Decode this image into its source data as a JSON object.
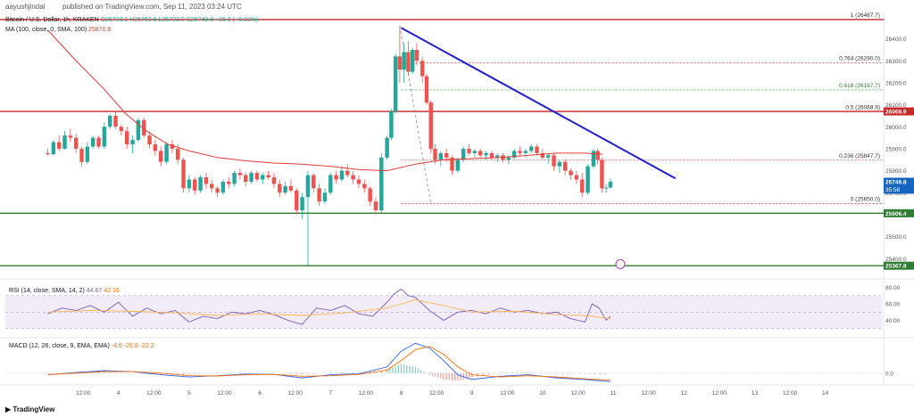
{
  "header": {
    "author": "aayushjindal",
    "published": "published on TradingView.com, Sep 11, 2023 03:24 UTC"
  },
  "legend": {
    "symbol": "Bitcoin / U.S. Dollar, 1h, KRAKEN",
    "ohlc": "O25723.1 H25763.6 L25723.0 C25749.8 +26.8 (+0.10%)",
    "ma_label": "MA (100, close, 0, SMA, 100)",
    "ma_value": "25870.8"
  },
  "colors": {
    "up": "#26a69a",
    "down": "#ef5350",
    "ma": "#e53935",
    "trend": "#1f1fd6",
    "fib": "#c62828",
    "support": "#2e7d32",
    "rsi": "#7e57c2",
    "macd": "#2962ff",
    "signal": "#ff6d00"
  },
  "chart_data": [
    {
      "type": "candlestick",
      "ylim": [
        25320,
        26520
      ],
      "y_ticks": [
        25400.0,
        25500.0,
        25600.0,
        25700.0,
        25800.0,
        25900.0,
        26000.0,
        26100.0,
        26200.0,
        26300.0,
        26400.0
      ],
      "x_ticks": [
        "12:00",
        "4",
        "12:00",
        "5",
        "12:00",
        "6",
        "12:00",
        "7",
        "12:00",
        "8",
        "12:00",
        "9",
        "12:00",
        "10",
        "12:00",
        "11",
        "12:00",
        "12",
        "12:00",
        "13",
        "12:00",
        "14"
      ],
      "price_tags": [
        {
          "label": "26069.9",
          "value": 26069.9,
          "kind": "resistance"
        },
        {
          "label": "25749.8",
          "sub": "35:58",
          "value": 25749.8,
          "kind": "last"
        },
        {
          "label": "25606.4",
          "value": 25606.4,
          "kind": "support"
        },
        {
          "label": "25367.8",
          "value": 25367.8,
          "kind": "support"
        }
      ],
      "horizontal_lines": [
        {
          "value": 26487.7,
          "kind": "resistance"
        },
        {
          "value": 26069.9,
          "kind": "resistance"
        },
        {
          "value": 25606.4,
          "kind": "support"
        },
        {
          "value": 25367.8,
          "kind": "support"
        }
      ],
      "fibonacci": [
        {
          "label": "1 (26487.7)",
          "value": 26487.7
        },
        {
          "label": "0.764 (26290.0)",
          "value": 26290.0
        },
        {
          "label": "0.618 (26167.7)",
          "value": 26167.7
        },
        {
          "label": "0.5 (26068.9)",
          "value": 26068.9
        },
        {
          "label": "0.236 (25847.7)",
          "value": 25847.7
        },
        {
          "label": "0 (25650.0)",
          "value": 25650.0
        }
      ],
      "trendline": {
        "from": [
          8.0,
          26450
        ],
        "to": [
          11.88,
          25765
        ]
      },
      "ma_series": {
        "x": [
          3.0,
          3.4,
          3.8,
          4.1,
          4.4,
          4.7,
          5.0,
          5.4,
          5.8,
          6.2,
          6.6,
          7.0,
          7.4,
          7.8,
          8.2,
          8.6,
          9.0,
          9.4,
          9.8,
          10.2,
          10.6,
          10.85
        ],
        "values": [
          26440,
          26300,
          26170,
          26060,
          25980,
          25920,
          25890,
          25860,
          25845,
          25835,
          25830,
          25820,
          25805,
          25800,
          25830,
          25850,
          25855,
          25860,
          25870,
          25880,
          25880,
          25875
        ]
      },
      "candles": [
        [
          3.0,
          25880,
          25900,
          25870,
          25875
        ],
        [
          3.08,
          25875,
          25940,
          25870,
          25930
        ],
        [
          3.16,
          25930,
          25960,
          25890,
          25900
        ],
        [
          3.24,
          25900,
          25980,
          25895,
          25960
        ],
        [
          3.32,
          25960,
          25990,
          25930,
          25950
        ],
        [
          3.4,
          25950,
          25970,
          25880,
          25900
        ],
        [
          3.48,
          25900,
          25910,
          25820,
          25840
        ],
        [
          3.56,
          25840,
          25930,
          25830,
          25910
        ],
        [
          3.64,
          25910,
          25960,
          25900,
          25950
        ],
        [
          3.72,
          25950,
          25960,
          25900,
          25910
        ],
        [
          3.8,
          25910,
          26020,
          25900,
          26000
        ],
        [
          3.88,
          26000,
          26060,
          25990,
          26050
        ],
        [
          3.96,
          26050,
          26070,
          25990,
          26000
        ],
        [
          4.04,
          26000,
          26010,
          25960,
          25980
        ],
        [
          4.12,
          25980,
          26000,
          25900,
          25920
        ],
        [
          4.2,
          25920,
          25960,
          25880,
          25940
        ],
        [
          4.28,
          25940,
          26040,
          25930,
          26030
        ],
        [
          4.36,
          26030,
          26040,
          25950,
          25960
        ],
        [
          4.44,
          25960,
          25980,
          25900,
          25920
        ],
        [
          4.52,
          25920,
          25940,
          25870,
          25890
        ],
        [
          4.6,
          25890,
          25910,
          25820,
          25840
        ],
        [
          4.68,
          25840,
          25930,
          25830,
          25920
        ],
        [
          4.76,
          25920,
          25940,
          25880,
          25900
        ],
        [
          4.84,
          25900,
          25920,
          25830,
          25850
        ],
        [
          4.92,
          25850,
          25860,
          25700,
          25720
        ],
        [
          5.0,
          25720,
          25780,
          25700,
          25760
        ],
        [
          5.08,
          25760,
          25770,
          25690,
          25710
        ],
        [
          5.16,
          25710,
          25780,
          25700,
          25770
        ],
        [
          5.24,
          25770,
          25790,
          25720,
          25740
        ],
        [
          5.32,
          25740,
          25760,
          25700,
          25720
        ],
        [
          5.4,
          25720,
          25730,
          25680,
          25700
        ],
        [
          5.48,
          25700,
          25760,
          25690,
          25750
        ],
        [
          5.56,
          25750,
          25770,
          25720,
          25740
        ],
        [
          5.64,
          25740,
          25800,
          25730,
          25790
        ],
        [
          5.72,
          25790,
          25810,
          25760,
          25780
        ],
        [
          5.8,
          25780,
          25790,
          25730,
          25750
        ],
        [
          5.88,
          25750,
          25800,
          25740,
          25790
        ],
        [
          5.96,
          25790,
          25800,
          25750,
          25760
        ],
        [
          6.04,
          25760,
          25790,
          25740,
          25780
        ],
        [
          6.12,
          25780,
          25800,
          25760,
          25770
        ],
        [
          6.2,
          25770,
          25790,
          25720,
          25740
        ],
        [
          6.28,
          25740,
          25760,
          25680,
          25700
        ],
        [
          6.36,
          25700,
          25750,
          25690,
          25730
        ],
        [
          6.44,
          25730,
          25760,
          25700,
          25710
        ],
        [
          6.52,
          25710,
          25720,
          25600,
          25620
        ],
        [
          6.6,
          25620,
          25700,
          25580,
          25680
        ],
        [
          6.68,
          25680,
          25800,
          25370,
          25780
        ],
        [
          6.76,
          25780,
          25790,
          25700,
          25720
        ],
        [
          6.84,
          25720,
          25740,
          25640,
          25660
        ],
        [
          6.92,
          25660,
          25720,
          25650,
          25700
        ],
        [
          7.0,
          25700,
          25790,
          25690,
          25780
        ],
        [
          7.08,
          25780,
          25800,
          25740,
          25760
        ],
        [
          7.16,
          25760,
          25820,
          25750,
          25800
        ],
        [
          7.24,
          25800,
          25830,
          25770,
          25780
        ],
        [
          7.32,
          25780,
          25800,
          25740,
          25760
        ],
        [
          7.4,
          25760,
          25780,
          25720,
          25740
        ],
        [
          7.48,
          25740,
          25760,
          25700,
          25720
        ],
        [
          7.56,
          25720,
          25730,
          25640,
          25660
        ],
        [
          7.64,
          25660,
          25680,
          25600,
          25620
        ],
        [
          7.72,
          25620,
          25880,
          25610,
          25860
        ],
        [
          7.8,
          25860,
          25960,
          25850,
          25950
        ],
        [
          7.86,
          25950,
          26080,
          25940,
          26070
        ],
        [
          7.92,
          26070,
          26330,
          26060,
          26320
        ],
        [
          7.98,
          26320,
          26460,
          26200,
          26260
        ],
        [
          8.04,
          26260,
          26380,
          26200,
          26340
        ],
        [
          8.1,
          26340,
          26390,
          26230,
          26250
        ],
        [
          8.16,
          26250,
          26360,
          26240,
          26350
        ],
        [
          8.22,
          26350,
          26380,
          26280,
          26300
        ],
        [
          8.3,
          26300,
          26320,
          26200,
          26230
        ],
        [
          8.36,
          26230,
          26240,
          26100,
          26110
        ],
        [
          8.42,
          26110,
          26120,
          25880,
          25900
        ],
        [
          8.48,
          25900,
          25920,
          25830,
          25850
        ],
        [
          8.56,
          25850,
          25890,
          25820,
          25880
        ],
        [
          8.64,
          25880,
          25900,
          25840,
          25860
        ],
        [
          8.72,
          25860,
          25870,
          25780,
          25800
        ],
        [
          8.8,
          25800,
          25860,
          25790,
          25850
        ],
        [
          8.88,
          25850,
          25910,
          25840,
          25900
        ],
        [
          8.96,
          25900,
          25920,
          25870,
          25880
        ],
        [
          9.04,
          25880,
          25900,
          25860,
          25890
        ],
        [
          9.12,
          25890,
          25900,
          25860,
          25870
        ],
        [
          9.2,
          25870,
          25890,
          25850,
          25880
        ],
        [
          9.28,
          25880,
          25890,
          25850,
          25860
        ],
        [
          9.36,
          25860,
          25880,
          25840,
          25870
        ],
        [
          9.44,
          25870,
          25880,
          25840,
          25850
        ],
        [
          9.52,
          25850,
          25870,
          25830,
          25860
        ],
        [
          9.6,
          25860,
          25900,
          25850,
          25890
        ],
        [
          9.68,
          25890,
          25910,
          25870,
          25880
        ],
        [
          9.76,
          25880,
          25900,
          25860,
          25890
        ],
        [
          9.84,
          25890,
          25920,
          25880,
          25910
        ],
        [
          9.92,
          25910,
          25920,
          25870,
          25880
        ],
        [
          10.0,
          25880,
          25900,
          25850,
          25860
        ],
        [
          10.08,
          25860,
          25880,
          25830,
          25870
        ],
        [
          10.16,
          25870,
          25880,
          25800,
          25820
        ],
        [
          10.24,
          25820,
          25850,
          25790,
          25840
        ],
        [
          10.32,
          25840,
          25850,
          25780,
          25800
        ],
        [
          10.4,
          25800,
          25810,
          25760,
          25780
        ],
        [
          10.48,
          25780,
          25800,
          25740,
          25760
        ],
        [
          10.56,
          25760,
          25790,
          25680,
          25700
        ],
        [
          10.64,
          25700,
          25830,
          25690,
          25820
        ],
        [
          10.72,
          25820,
          25900,
          25810,
          25890
        ],
        [
          10.78,
          25890,
          25900,
          25830,
          25850
        ],
        [
          10.84,
          25850,
          25860,
          25700,
          25720
        ],
        [
          10.9,
          25720,
          25740,
          25700,
          25723
        ],
        [
          10.96,
          25723,
          25764,
          25723,
          25750
        ]
      ]
    },
    {
      "type": "line",
      "title": "RSI (14, close, SMA, 14, 2)",
      "values_label": "44.67",
      "ma_label": "42.16",
      "y_ticks": [
        40.0,
        60.0,
        80.0
      ],
      "band": [
        30,
        70
      ],
      "ylim": [
        20,
        85
      ],
      "series": [
        {
          "x": [
            3.0,
            3.2,
            3.4,
            3.6,
            3.8,
            4.0,
            4.2,
            4.4,
            4.6,
            4.8,
            5.0,
            5.2,
            5.4,
            5.6,
            5.8,
            6.0,
            6.2,
            6.4,
            6.6,
            6.8,
            7.0,
            7.2,
            7.4,
            7.6,
            7.8,
            7.9,
            8.0,
            8.1,
            8.2,
            8.4,
            8.6,
            8.8,
            9.0,
            9.2,
            9.4,
            9.6,
            9.8,
            10.0,
            10.2,
            10.4,
            10.6,
            10.7,
            10.8,
            10.9,
            10.96
          ],
          "values": [
            48,
            55,
            52,
            58,
            50,
            62,
            45,
            55,
            48,
            52,
            38,
            45,
            42,
            50,
            48,
            52,
            47,
            40,
            35,
            55,
            52,
            58,
            48,
            45,
            62,
            72,
            78,
            70,
            68,
            52,
            40,
            50,
            52,
            48,
            55,
            50,
            52,
            48,
            50,
            42,
            38,
            60,
            55,
            40,
            45
          ]
        },
        {
          "x": [
            3.0,
            3.6,
            4.2,
            4.8,
            5.4,
            6.0,
            6.6,
            7.2,
            7.8,
            8.2,
            8.6,
            9.0,
            9.6,
            10.2,
            10.6,
            10.96
          ],
          "values": [
            50,
            52,
            51,
            49,
            46,
            48,
            46,
            49,
            55,
            65,
            58,
            50,
            51,
            47,
            46,
            42
          ]
        }
      ]
    },
    {
      "type": "line",
      "title": "MACD (12, 26, close, 9, EMA, EMA)",
      "values_label": "-4.6  -26.8  -22.2",
      "y_ticks": [
        0.0
      ],
      "ylim": [
        -60,
        110
      ],
      "series": [
        {
          "x": [
            3.0,
            3.4,
            3.8,
            4.2,
            4.6,
            5.0,
            5.4,
            5.8,
            6.2,
            6.6,
            7.0,
            7.4,
            7.8,
            8.0,
            8.2,
            8.4,
            8.6,
            8.8,
            9.0,
            9.4,
            9.8,
            10.2,
            10.6,
            10.96
          ],
          "values": [
            -5,
            2,
            8,
            5,
            -5,
            -12,
            -8,
            -3,
            -4,
            -15,
            -5,
            -2,
            20,
            70,
            95,
            80,
            40,
            -5,
            -20,
            -10,
            -5,
            -15,
            -20,
            -27
          ]
        },
        {
          "x": [
            3.0,
            3.4,
            3.8,
            4.2,
            4.6,
            5.0,
            5.4,
            5.8,
            6.2,
            6.6,
            7.0,
            7.4,
            7.8,
            8.0,
            8.2,
            8.4,
            8.6,
            8.8,
            9.0,
            9.4,
            9.8,
            10.2,
            10.6,
            10.96
          ],
          "values": [
            -4,
            0,
            5,
            5,
            0,
            -8,
            -9,
            -5,
            -4,
            -10,
            -8,
            -4,
            10,
            40,
            75,
            85,
            60,
            20,
            -5,
            -12,
            -8,
            -12,
            -18,
            -22
          ]
        }
      ]
    }
  ]
}
